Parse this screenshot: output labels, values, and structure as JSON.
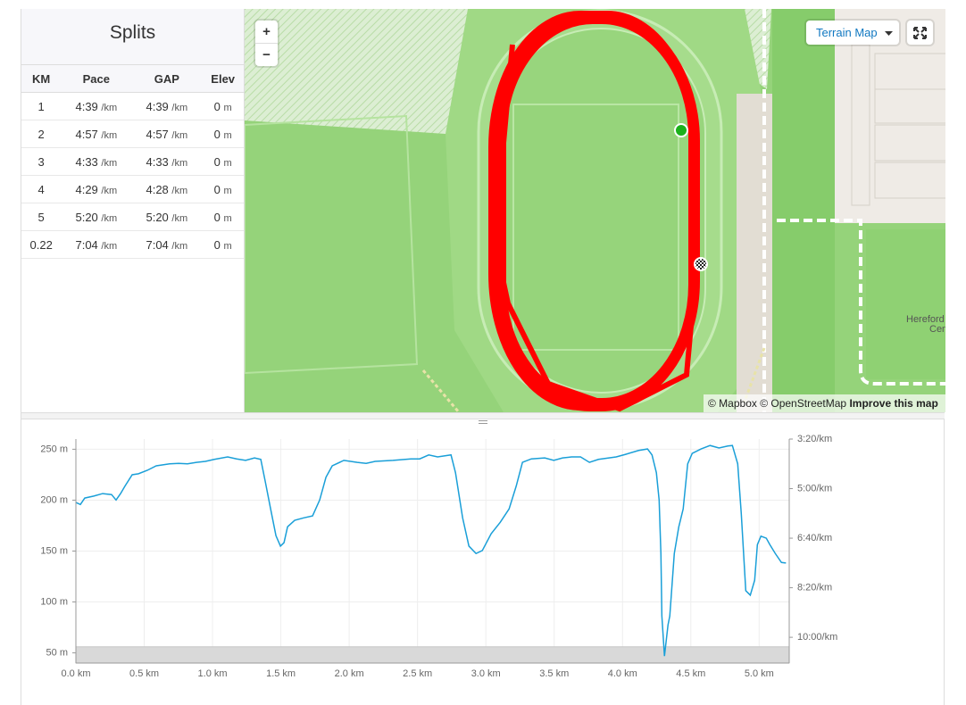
{
  "splits": {
    "title": "Splits",
    "columns": [
      "KM",
      "Pace",
      "GAP",
      "Elev"
    ],
    "rows": [
      {
        "km": "1",
        "pace": "4:39",
        "pace_unit": "/km",
        "gap": "4:39",
        "gap_unit": "/km",
        "elev": "0",
        "elev_unit": "m"
      },
      {
        "km": "2",
        "pace": "4:57",
        "pace_unit": "/km",
        "gap": "4:57",
        "gap_unit": "/km",
        "elev": "0",
        "elev_unit": "m"
      },
      {
        "km": "3",
        "pace": "4:33",
        "pace_unit": "/km",
        "gap": "4:33",
        "gap_unit": "/km",
        "elev": "0",
        "elev_unit": "m"
      },
      {
        "km": "4",
        "pace": "4:29",
        "pace_unit": "/km",
        "gap": "4:28",
        "gap_unit": "/km",
        "elev": "0",
        "elev_unit": "m"
      },
      {
        "km": "5",
        "pace": "5:20",
        "pace_unit": "/km",
        "gap": "5:20",
        "gap_unit": "/km",
        "elev": "0",
        "elev_unit": "m"
      },
      {
        "km": "0.22",
        "pace": "7:04",
        "pace_unit": "/km",
        "gap": "7:04",
        "gap_unit": "/km",
        "elev": "0",
        "elev_unit": "m"
      }
    ]
  },
  "map": {
    "zoom_in": "+",
    "zoom_out": "−",
    "map_type": "Terrain Map",
    "attribution": "© Mapbox © OpenStreetMap",
    "improve": "Improve this map",
    "labels": [
      "Hereford",
      "Cen"
    ]
  },
  "chart_data": {
    "type": "line",
    "grid": true,
    "xlim": [
      0,
      5.22
    ],
    "xticks": [
      {
        "value": 0,
        "label": "0.0 km"
      },
      {
        "value": 0.5,
        "label": "0.5 km"
      },
      {
        "value": 1,
        "label": "1.0 km"
      },
      {
        "value": 1.5,
        "label": "1.5 km"
      },
      {
        "value": 2,
        "label": "2.0 km"
      },
      {
        "value": 2.5,
        "label": "2.5 km"
      },
      {
        "value": 3,
        "label": "3.0 km"
      },
      {
        "value": 3.5,
        "label": "3.5 km"
      },
      {
        "value": 4,
        "label": "4.0 km"
      },
      {
        "value": 4.5,
        "label": "4.5 km"
      },
      {
        "value": 5,
        "label": "5.0 km"
      }
    ],
    "ylim": [
      40,
      260
    ],
    "yticks": [
      {
        "value": 50,
        "label": "50 m"
      },
      {
        "value": 100,
        "label": "100 m"
      },
      {
        "value": 150,
        "label": "150 m"
      },
      {
        "value": 200,
        "label": "200 m"
      },
      {
        "value": 250,
        "label": "250 m"
      }
    ],
    "y2lim": [
      652,
      200
    ],
    "y2ticks": [
      {
        "value": 200,
        "label": "3:20/km"
      },
      {
        "value": 300,
        "label": "5:00/km"
      },
      {
        "value": 400,
        "label": "6:40/km"
      },
      {
        "value": 500,
        "label": "8:20/km"
      },
      {
        "value": 600,
        "label": "10:00/km"
      }
    ],
    "series": [
      {
        "axis": "y2",
        "color": "#1a9fd8",
        "x": [
          0,
          0.033,
          0.065,
          0.131,
          0.196,
          0.261,
          0.294,
          0.327,
          0.359,
          0.412,
          0.458,
          0.523,
          0.588,
          0.686,
          0.752,
          0.817,
          0.882,
          0.948,
          1.013,
          1.111,
          1.176,
          1.242,
          1.307,
          1.353,
          1.386,
          1.425,
          1.464,
          1.497,
          1.523,
          1.549,
          1.601,
          1.667,
          1.732,
          1.784,
          1.83,
          1.876,
          1.961,
          2.059,
          2.124,
          2.19,
          2.32,
          2.451,
          2.516,
          2.582,
          2.647,
          2.745,
          2.778,
          2.83,
          2.876,
          2.928,
          2.974,
          3.039,
          3.105,
          3.17,
          3.222,
          3.268,
          3.333,
          3.431,
          3.497,
          3.562,
          3.627,
          3.693,
          3.758,
          3.824,
          3.954,
          4.02,
          4.118,
          4.183,
          4.216,
          4.248,
          4.268,
          4.281,
          4.288,
          4.307,
          4.333,
          4.346,
          4.379,
          4.412,
          4.444,
          4.477,
          4.51,
          4.575,
          4.641,
          4.706,
          4.771,
          4.804,
          4.843,
          4.869,
          4.902,
          4.935,
          4.967,
          4.987,
          5.013,
          5.052,
          5.078,
          5.118,
          5.163,
          5.196
        ],
        "values": [
          328,
          332,
          319,
          315,
          310,
          312,
          323,
          310,
          295,
          272,
          270,
          263,
          254,
          250,
          249,
          250,
          247,
          245,
          241,
          236,
          240,
          243,
          238,
          241,
          286,
          341,
          395,
          416,
          409,
          377,
          364,
          359,
          355,
          323,
          277,
          254,
          243,
          247,
          249,
          245,
          243,
          240,
          240,
          232,
          236,
          232,
          268,
          359,
          416,
          431,
          425,
          391,
          368,
          341,
          295,
          247,
          240,
          238,
          243,
          238,
          236,
          236,
          247,
          241,
          236,
          231,
          223,
          220,
          232,
          268,
          323,
          431,
          557,
          638,
          575,
          557,
          431,
          377,
          341,
          250,
          229,
          220,
          213,
          218,
          214,
          213,
          250,
          350,
          506,
          515,
          485,
          413,
          396,
          400,
          413,
          431,
          449,
          450
        ]
      },
      {
        "color": "#d9d9d9",
        "x": [
          0,
          5.22
        ],
        "values": [
          56,
          56
        ]
      }
    ]
  }
}
